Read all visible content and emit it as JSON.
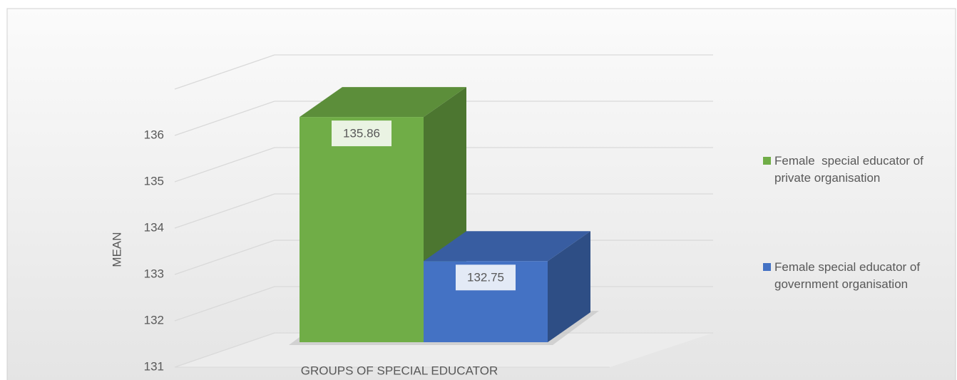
{
  "chart_data": {
    "type": "bar3d",
    "categories": [
      "GROUPS OF SPECIAL EDUCATOR"
    ],
    "y_axis_label": "MEAN",
    "series": [
      {
        "name": "Female  special educator of   private organisation",
        "color": "#70ad47",
        "values": [
          135.86
        ]
      },
      {
        "name": "Female special educator of government organisation",
        "color": "#4472c4",
        "values": [
          132.75
        ]
      }
    ],
    "ylim": [
      131,
      137
    ],
    "yticks": [
      131,
      132,
      133,
      134,
      135,
      136
    ],
    "grid": true,
    "legend": "right"
  }
}
